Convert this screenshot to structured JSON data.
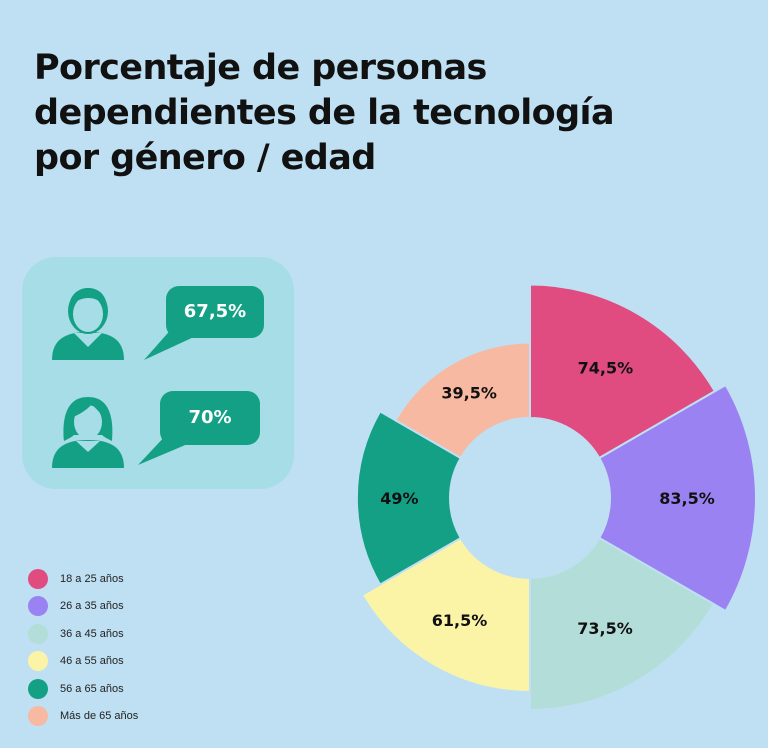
{
  "title_lines": [
    "Porcentaje de personas",
    "dependientes de la tecnología",
    "por género / edad"
  ],
  "gender": {
    "male_value": "67,5%",
    "female_value": "70%",
    "accent_color": "#14a085"
  },
  "chart_data": {
    "type": "pie",
    "title": "Porcentaje de personas dependientes de la tecnología por género / edad",
    "categories": [
      "18 a 25 años",
      "26 a 35 años",
      "36 a 45 años",
      "46 a 55 años",
      "56 a 65 años",
      "Más de 65 años"
    ],
    "values": [
      74.5,
      83.5,
      73.5,
      61.5,
      49,
      39.5
    ],
    "labels": [
      "74,5%",
      "83,5%",
      "73,5%",
      "61,5%",
      "49%",
      "39,5%"
    ],
    "colors": [
      "#e04b80",
      "#9b82f2",
      "#b3ddd8",
      "#fbf4a6",
      "#14a085",
      "#f8b9a2"
    ],
    "donut": true,
    "legend": "bottom-left"
  }
}
